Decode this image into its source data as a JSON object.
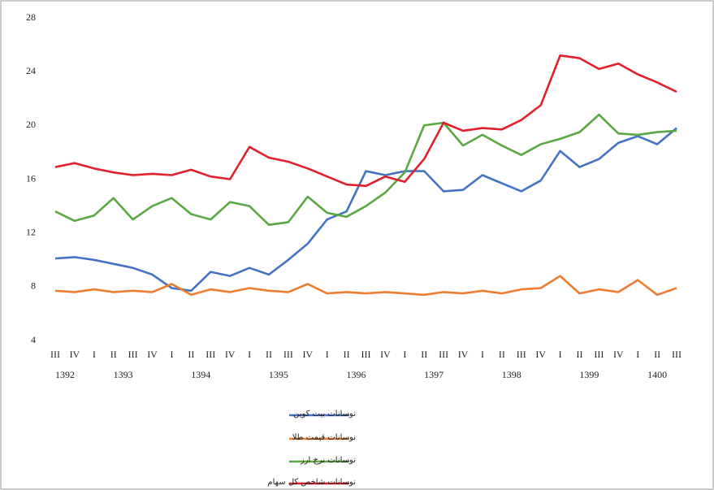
{
  "chart_data": {
    "type": "line",
    "categories": [
      "III",
      "IV",
      "I",
      "II",
      "III",
      "IV",
      "I",
      "II",
      "III",
      "IV",
      "I",
      "II",
      "III",
      "IV",
      "I",
      "II",
      "III",
      "IV",
      "I",
      "II",
      "III",
      "IV",
      "I",
      "II",
      "III",
      "IV",
      "I",
      "II",
      "III",
      "IV",
      "I",
      "II",
      "III"
    ],
    "year_labels": [
      "1392",
      "1393",
      "1394",
      "1395",
      "1396",
      "1397",
      "1398",
      "1399",
      "1400"
    ],
    "ylim": [
      4,
      28
    ],
    "yticks": [
      4,
      8,
      12,
      16,
      20,
      24,
      28
    ],
    "grid": false,
    "legend": "bottom",
    "series": [
      {
        "name": "نوسانات بیت کوین",
        "color": "#4472c4",
        "values": [
          10.1,
          10.2,
          10.0,
          9.7,
          9.4,
          8.9,
          7.9,
          7.7,
          9.1,
          8.8,
          9.4,
          8.9,
          10.0,
          11.2,
          13.0,
          13.6,
          16.6,
          16.3,
          16.6,
          16.6,
          15.1,
          15.2,
          16.3,
          15.7,
          15.1,
          15.9,
          18.1,
          16.9,
          17.5,
          18.7,
          19.2,
          18.6,
          19.8
        ]
      },
      {
        "name": "نوسانات قیمت طلا",
        "color": "#ed7d31",
        "values": [
          7.7,
          7.6,
          7.8,
          7.6,
          7.7,
          7.6,
          8.2,
          7.4,
          7.8,
          7.6,
          7.9,
          7.7,
          7.6,
          8.2,
          7.5,
          7.6,
          7.5,
          7.6,
          7.5,
          7.4,
          7.6,
          7.5,
          7.7,
          7.5,
          7.8,
          7.9,
          8.8,
          7.5,
          7.8,
          7.6,
          8.5,
          7.4,
          7.9
        ]
      },
      {
        "name": "نوسانات نرخ ارز",
        "color": "#5aa843",
        "values": [
          13.6,
          12.9,
          13.3,
          14.6,
          13.0,
          14.0,
          14.6,
          13.4,
          13.0,
          14.3,
          14.0,
          12.6,
          12.8,
          14.7,
          13.5,
          13.2,
          14.0,
          15.0,
          16.5,
          20.0,
          20.2,
          18.5,
          19.3,
          18.5,
          17.8,
          18.6,
          19.0,
          19.5,
          20.8,
          19.4,
          19.3,
          19.5,
          19.6
        ]
      },
      {
        "name": "نوسانات شاخص کل سهام",
        "color": "#e0202b",
        "values": [
          16.9,
          17.2,
          16.8,
          16.5,
          16.3,
          16.4,
          16.3,
          16.7,
          16.2,
          16.0,
          18.4,
          17.6,
          17.3,
          16.8,
          16.2,
          15.6,
          15.5,
          16.2,
          15.8,
          17.5,
          20.2,
          19.6,
          19.8,
          19.7,
          20.4,
          21.5,
          25.2,
          25.0,
          24.2,
          24.6,
          23.8,
          23.2,
          22.5
        ]
      }
    ]
  }
}
